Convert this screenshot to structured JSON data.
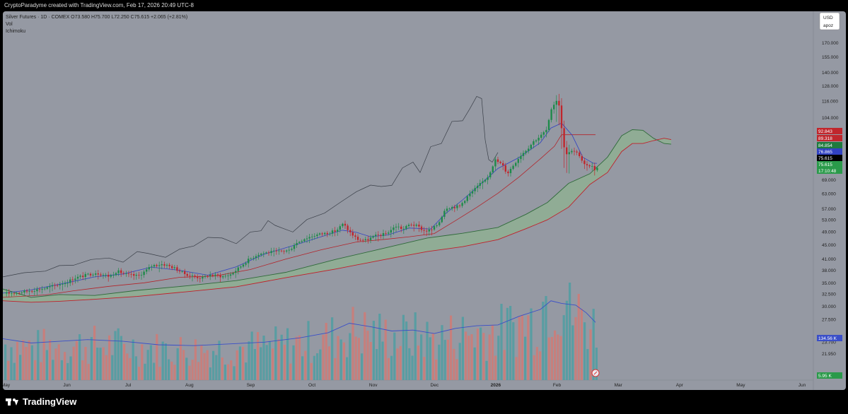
{
  "header": {
    "attribution": "CryptoParadyme created with TradingView.com, Feb 17, 2026 20:49 UTC-8"
  },
  "legend": {
    "symbol_line": "Silver Futures · 1D · COMEX  O73.580  H75.700  L72.250  C75.615  +2.065 (+2.81%)",
    "vol_label": "Vol",
    "ichimoku_label": "Ichimoku"
  },
  "currency": {
    "line1": "USD",
    "line2": "apoz"
  },
  "footer": {
    "brand": "TradingView"
  },
  "colors": {
    "background": "#9599a3",
    "up": "#1e8a4a",
    "down": "#c0262c",
    "conversion_line": "#3142c2",
    "base_line": "#b3242a",
    "lagging_span": "#3a3f48",
    "leading_span_a": "#2f6a3a",
    "leading_span_b": "#c0202a",
    "cloud_fill": "#8fb48f",
    "vol_up": "#4f9ea2",
    "vol_down": "#d07a76",
    "vol_ma": "#3a4fc8"
  },
  "chart_data": {
    "type": "candlestick",
    "title": "Silver Futures · 1D · COMEX",
    "y_scale": "log",
    "ylim": [
      19.5,
      182
    ],
    "price_axis_ticks": [
      "170.000",
      "155.000",
      "140.000",
      "128.000",
      "116.000",
      "104.000",
      "96.000",
      "84.000",
      "76.000",
      "69.000",
      "63.000",
      "57.000",
      "53.000",
      "49.000",
      "45.000",
      "41.000",
      "38.000",
      "35.000",
      "32.500",
      "30.000",
      "27.500",
      "23.700",
      "21.950"
    ],
    "x_ticks": [
      "May",
      "Jun",
      "Jul",
      "Aug",
      "Sep",
      "Oct",
      "Nov",
      "Dec",
      "2026",
      "Feb",
      "Mar",
      "Apr",
      "May",
      "Jun"
    ],
    "last_ohlc": {
      "open": 73.58,
      "high": 75.7,
      "low": 72.25,
      "close": 75.615,
      "change": 2.065,
      "change_pct": "+2.81%"
    },
    "price_labels": [
      {
        "value": "92.843",
        "color": "#c0262c"
      },
      {
        "value": "89.318",
        "color": "#c0262c"
      },
      {
        "value": "84.854",
        "color": "#1e7a3e"
      },
      {
        "value": "76.865",
        "color": "#3142c2"
      },
      {
        "value": "75.615",
        "color": "#000000"
      },
      {
        "value": "75.615",
        "color": "#2a9a4a"
      },
      {
        "value": "17:10:48",
        "color": "#2a9a4a"
      }
    ],
    "volume_labels": [
      {
        "value": "134.56 K",
        "color": "#3a4fc8"
      },
      {
        "value": "5.95 K",
        "color": "#2a9a4a"
      }
    ],
    "price_path": {
      "x": [
        0,
        20,
        40,
        60,
        90,
        100,
        130,
        150,
        160,
        175,
        190,
        200,
        210,
        225,
        240,
        255,
        270,
        282,
        290,
        310,
        320,
        330,
        345,
        360,
        375,
        390,
        405,
        410,
        425,
        440,
        455,
        470,
        480,
        490,
        500,
        512,
        525,
        540,
        555,
        565,
        575,
        585,
        595,
        605,
        615,
        625,
        635,
        645,
        655,
        665,
        675,
        685,
        695,
        705,
        712,
        720,
        730,
        740,
        750,
        760,
        768,
        775,
        781,
        785,
        790,
        795,
        800,
        805,
        810,
        815,
        820,
        825,
        830,
        835,
        840
      ],
      "y": [
        32.6,
        32.8,
        33.3,
        33.8,
        35.2,
        36.1,
        37.4,
        36.5,
        37.8,
        36.9,
        36.6,
        37.8,
        39.2,
        39.6,
        38.7,
        37.2,
        36.4,
        36.1,
        36.9,
        36.5,
        36.9,
        38.2,
        40.6,
        42.3,
        42.8,
        43.0,
        43.4,
        45.0,
        46.8,
        47.9,
        48.5,
        49.3,
        51.6,
        48.7,
        46.6,
        46.3,
        47.6,
        48.3,
        50.9,
        49.8,
        51.6,
        50.8,
        49.2,
        49.6,
        51.8,
        57.5,
        57.6,
        58.0,
        61.6,
        64.5,
        67.4,
        70.7,
        78.6,
        76.1,
        71.8,
        75.7,
        80.7,
        84.5,
        89.1,
        92.4,
        96.0,
        110.0,
        117.0,
        114.0,
        91.0,
        80.7,
        83.5,
        83.0,
        82.3,
        80.7,
        76.2,
        75.2,
        76.3,
        73.6,
        75.6
      ]
    },
    "ichimoku_lines": {
      "conversion": {
        "x": [
          0,
          40,
          90,
          130,
          170,
          210,
          250,
          290,
          330,
          370,
          410,
          450,
          480,
          500,
          520,
          545,
          575,
          605,
          625,
          650,
          675,
          700,
          730,
          760,
          775,
          790,
          805,
          820,
          835,
          840
        ],
        "y": [
          32.7,
          33.4,
          35.0,
          36.4,
          37.1,
          38.8,
          38.0,
          36.8,
          38.9,
          42.3,
          44.7,
          47.4,
          49.5,
          48.8,
          47.4,
          48.0,
          50.2,
          49.9,
          55.0,
          60.4,
          66.9,
          74.3,
          79.9,
          88.1,
          97.0,
          100.2,
          92.5,
          80.0,
          76.9,
          76.9
        ]
      },
      "base": {
        "x": [
          0,
          60,
          100,
          150,
          200,
          250,
          300,
          350,
          400,
          450,
          500,
          540,
          575,
          610,
          640,
          670,
          700,
          730,
          760,
          780,
          790,
          810,
          838
        ],
        "y": [
          31.8,
          32.3,
          33.2,
          34.2,
          35.0,
          36.3,
          36.6,
          38.2,
          40.9,
          43.5,
          45.8,
          46.6,
          47.4,
          48.4,
          52.7,
          57.5,
          63.1,
          70.3,
          79.2,
          86.1,
          92.8,
          92.8,
          92.8
        ]
      },
      "lagging": {
        "x": [
          0,
          30,
          60,
          80,
          100,
          125,
          150,
          170,
          190,
          205,
          230,
          250,
          270,
          290,
          310,
          330,
          350,
          365,
          375,
          385,
          395,
          410,
          430,
          455,
          480,
          500,
          520,
          535,
          550,
          565,
          580,
          590,
          605,
          620,
          635,
          650,
          660,
          670,
          677,
          682,
          687,
          692,
          700
        ],
        "y": [
          36.4,
          37.4,
          37.8,
          39.2,
          39.3,
          40.8,
          41.2,
          40.1,
          43.0,
          42.5,
          41.4,
          43.7,
          44.6,
          47.2,
          47.0,
          45.3,
          48.9,
          49.3,
          52.7,
          51.1,
          50.2,
          48.9,
          53.1,
          55.4,
          60.0,
          63.8,
          66.6,
          66.0,
          66.5,
          74.6,
          77.5,
          72.4,
          85.8,
          87.6,
          101.3,
          101.8,
          109.9,
          119.5,
          117.8,
          89.7,
          78.8,
          77.5,
          82.6
        ]
      },
      "span_a": {
        "x": [
          0,
          40,
          80,
          130,
          190,
          260,
          330,
          400,
          470,
          540,
          600,
          650,
          700,
          740,
          770,
          800,
          830,
          855,
          875,
          890,
          905,
          920,
          935,
          945
        ],
        "y": [
          33.6,
          31.8,
          32.4,
          32.2,
          33.3,
          34.3,
          35.5,
          37.5,
          40.8,
          44.0,
          47.0,
          48.5,
          50.4,
          55.0,
          59.4,
          67.4,
          71.8,
          80.1,
          92.2,
          96.0,
          95.6,
          90.7,
          87.6,
          87.2
        ]
      },
      "span_b": {
        "x": [
          0,
          40,
          80,
          130,
          190,
          260,
          330,
          400,
          470,
          540,
          600,
          650,
          700,
          740,
          770,
          800,
          830,
          855,
          875,
          890,
          905,
          920,
          935,
          945
        ],
        "y": [
          31.1,
          30.8,
          31.0,
          31.4,
          32.0,
          33.0,
          34.1,
          36.2,
          38.3,
          40.8,
          43.0,
          44.4,
          46.5,
          50.0,
          53.0,
          57.6,
          66.9,
          72.4,
          83.1,
          87.6,
          87.6,
          89.3,
          90.7,
          89.9
        ]
      }
    },
    "volume_ma": {
      "x": [
        0,
        40,
        80,
        120,
        170,
        220,
        270,
        320,
        370,
        420,
        460,
        490,
        520,
        550,
        580,
        610,
        640,
        670,
        700,
        730,
        760,
        775,
        790,
        810,
        825,
        838
      ],
      "y": [
        48,
        43,
        45,
        47,
        45,
        41,
        40,
        42,
        44,
        49,
        55,
        66,
        62,
        57,
        58,
        54,
        60,
        63,
        64,
        74,
        82,
        92,
        89,
        87,
        78,
        67
      ]
    }
  }
}
